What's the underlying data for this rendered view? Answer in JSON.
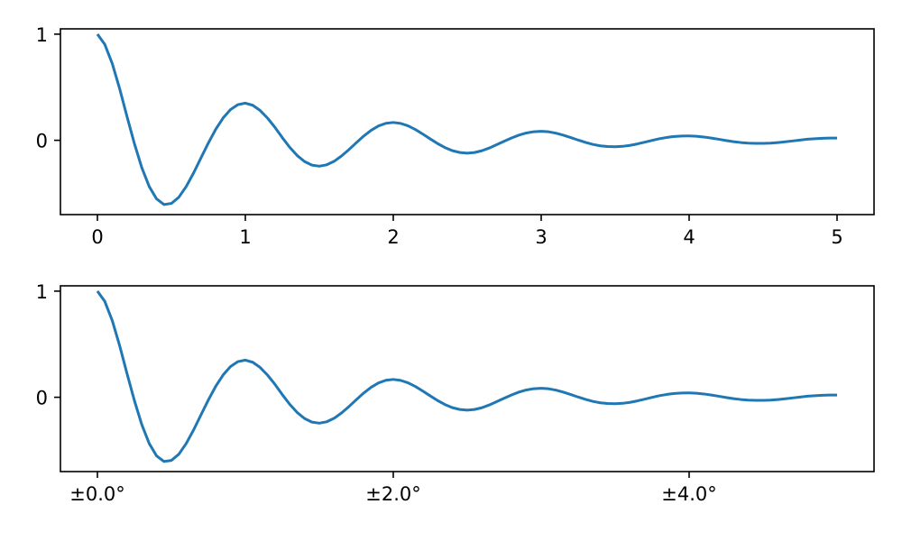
{
  "chart_data": [
    {
      "type": "line",
      "title": "",
      "xlabel": "",
      "ylabel": "",
      "xlim": [
        -0.25,
        5.25
      ],
      "ylim": [
        -0.7,
        1.05
      ],
      "xticks": [
        0,
        1,
        2,
        3,
        4,
        5
      ],
      "xtick_labels": [
        "0",
        "1",
        "2",
        "3",
        "4",
        "5"
      ],
      "yticks": [
        0,
        1
      ],
      "ytick_labels": [
        "0",
        "1"
      ],
      "grid": false,
      "legend": "none",
      "color": "#1f77b4",
      "series": [
        {
          "x": [
            0.0,
            0.05,
            0.1,
            0.15,
            0.2,
            0.25,
            0.3,
            0.35,
            0.4,
            0.45,
            0.5,
            0.55,
            0.6,
            0.65,
            0.7,
            0.75,
            0.8,
            0.85,
            0.9,
            0.95,
            1.0,
            1.05,
            1.1,
            1.15,
            1.2,
            1.25,
            1.3,
            1.35,
            1.4,
            1.45,
            1.5,
            1.55,
            1.6,
            1.65,
            1.7,
            1.75,
            1.8,
            1.85,
            1.9,
            1.95,
            2.0,
            2.05,
            2.1,
            2.15,
            2.2,
            2.25,
            2.3,
            2.35,
            2.4,
            2.45,
            2.5,
            2.55,
            2.6,
            2.65,
            2.7,
            2.75,
            2.8,
            2.85,
            2.9,
            2.95,
            3.0,
            3.05,
            3.1,
            3.15,
            3.2,
            3.25,
            3.3,
            3.35,
            3.4,
            3.45,
            3.5,
            3.55,
            3.6,
            3.65,
            3.7,
            3.75,
            3.8,
            3.85,
            3.9,
            3.95,
            4.0,
            4.05,
            4.1,
            4.15,
            4.2,
            4.25,
            4.3,
            4.35,
            4.4,
            4.45,
            4.5,
            4.55,
            4.6,
            4.65,
            4.7,
            4.75,
            4.8,
            4.85,
            4.9,
            4.95,
            5.0
          ],
          "y": [
            1.0,
            0.903,
            0.724,
            0.488,
            0.224,
            -0.031,
            -0.258,
            -0.435,
            -0.552,
            -0.605,
            -0.595,
            -0.537,
            -0.436,
            -0.308,
            -0.166,
            -0.025,
            0.104,
            0.211,
            0.29,
            0.336,
            0.35,
            0.33,
            0.281,
            0.209,
            0.122,
            0.025,
            -0.066,
            -0.143,
            -0.2,
            -0.234,
            -0.244,
            -0.231,
            -0.198,
            -0.148,
            -0.088,
            -0.023,
            0.04,
            0.094,
            0.135,
            0.16,
            0.168,
            0.159,
            0.136,
            0.101,
            0.058,
            0.013,
            -0.031,
            -0.069,
            -0.098,
            -0.115,
            -0.121,
            -0.115,
            -0.098,
            -0.072,
            -0.041,
            -0.009,
            0.022,
            0.049,
            0.069,
            0.081,
            0.085,
            0.08,
            0.067,
            0.048,
            0.026,
            0.002,
            -0.02,
            -0.039,
            -0.052,
            -0.059,
            -0.061,
            -0.057,
            -0.048,
            -0.034,
            -0.018,
            -0.001,
            0.015,
            0.027,
            0.036,
            0.04,
            0.041,
            0.038,
            0.031,
            0.021,
            0.01,
            -0.002,
            -0.013,
            -0.021,
            -0.027,
            -0.029,
            -0.029,
            -0.027,
            -0.021,
            -0.014,
            -0.006,
            0.002,
            0.01,
            0.015,
            0.019,
            0.021,
            0.021
          ]
        }
      ]
    },
    {
      "type": "line",
      "title": "",
      "xlabel": "",
      "ylabel": "",
      "xlim": [
        -0.25,
        5.25
      ],
      "ylim": [
        -0.7,
        1.05
      ],
      "xticks": [
        0,
        2,
        4
      ],
      "xtick_labels": [
        "±0.0°",
        "±2.0°",
        "±4.0°"
      ],
      "yticks": [
        0,
        1
      ],
      "ytick_labels": [
        "0",
        "1"
      ],
      "grid": false,
      "legend": "none",
      "color": "#1f77b4",
      "series": [
        {
          "x": [
            0.0,
            0.05,
            0.1,
            0.15,
            0.2,
            0.25,
            0.3,
            0.35,
            0.4,
            0.45,
            0.5,
            0.55,
            0.6,
            0.65,
            0.7,
            0.75,
            0.8,
            0.85,
            0.9,
            0.95,
            1.0,
            1.05,
            1.1,
            1.15,
            1.2,
            1.25,
            1.3,
            1.35,
            1.4,
            1.45,
            1.5,
            1.55,
            1.6,
            1.65,
            1.7,
            1.75,
            1.8,
            1.85,
            1.9,
            1.95,
            2.0,
            2.05,
            2.1,
            2.15,
            2.2,
            2.25,
            2.3,
            2.35,
            2.4,
            2.45,
            2.5,
            2.55,
            2.6,
            2.65,
            2.7,
            2.75,
            2.8,
            2.85,
            2.9,
            2.95,
            3.0,
            3.05,
            3.1,
            3.15,
            3.2,
            3.25,
            3.3,
            3.35,
            3.4,
            3.45,
            3.5,
            3.55,
            3.6,
            3.65,
            3.7,
            3.75,
            3.8,
            3.85,
            3.9,
            3.95,
            4.0,
            4.05,
            4.1,
            4.15,
            4.2,
            4.25,
            4.3,
            4.35,
            4.4,
            4.45,
            4.5,
            4.55,
            4.6,
            4.65,
            4.7,
            4.75,
            4.8,
            4.85,
            4.9,
            4.95,
            5.0
          ],
          "y": [
            1.0,
            0.903,
            0.724,
            0.488,
            0.224,
            -0.031,
            -0.258,
            -0.435,
            -0.552,
            -0.605,
            -0.595,
            -0.537,
            -0.436,
            -0.308,
            -0.166,
            -0.025,
            0.104,
            0.211,
            0.29,
            0.336,
            0.35,
            0.33,
            0.281,
            0.209,
            0.122,
            0.025,
            -0.066,
            -0.143,
            -0.2,
            -0.234,
            -0.244,
            -0.231,
            -0.198,
            -0.148,
            -0.088,
            -0.023,
            0.04,
            0.094,
            0.135,
            0.16,
            0.168,
            0.159,
            0.136,
            0.101,
            0.058,
            0.013,
            -0.031,
            -0.069,
            -0.098,
            -0.115,
            -0.121,
            -0.115,
            -0.098,
            -0.072,
            -0.041,
            -0.009,
            0.022,
            0.049,
            0.069,
            0.081,
            0.085,
            0.08,
            0.067,
            0.048,
            0.026,
            0.002,
            -0.02,
            -0.039,
            -0.052,
            -0.059,
            -0.061,
            -0.057,
            -0.048,
            -0.034,
            -0.018,
            -0.001,
            0.015,
            0.027,
            0.036,
            0.04,
            0.041,
            0.038,
            0.031,
            0.021,
            0.01,
            -0.002,
            -0.013,
            -0.021,
            -0.027,
            -0.029,
            -0.029,
            -0.027,
            -0.021,
            -0.014,
            -0.006,
            0.002,
            0.01,
            0.015,
            0.019,
            0.021,
            0.021
          ]
        }
      ]
    }
  ]
}
